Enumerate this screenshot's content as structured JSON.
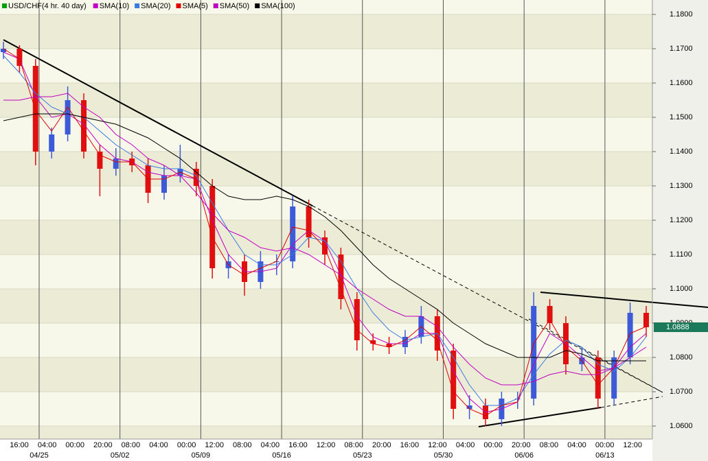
{
  "chart_data": {
    "type": "candlestick",
    "title": "USD/CHF(4 hr.  40 day)",
    "title_color": "#00a000",
    "up_color": "#3d5bd9",
    "down_color": "#e01010",
    "ohlc": [
      [
        1.169,
        1.172,
        1.167,
        1.17
      ],
      [
        1.17,
        1.171,
        1.163,
        1.165
      ],
      [
        1.165,
        1.167,
        1.136,
        1.14
      ],
      [
        1.14,
        1.147,
        1.138,
        1.145
      ],
      [
        1.145,
        1.159,
        1.143,
        1.155
      ],
      [
        1.155,
        1.157,
        1.138,
        1.14
      ],
      [
        1.14,
        1.142,
        1.127,
        1.135
      ],
      [
        1.135,
        1.141,
        1.133,
        1.138
      ],
      [
        1.138,
        1.14,
        1.134,
        1.136
      ],
      [
        1.136,
        1.138,
        1.125,
        1.128
      ],
      [
        1.128,
        1.136,
        1.126,
        1.133
      ],
      [
        1.133,
        1.142,
        1.131,
        1.135
      ],
      [
        1.135,
        1.137,
        1.127,
        1.13
      ],
      [
        1.13,
        1.132,
        1.103,
        1.106
      ],
      [
        1.106,
        1.11,
        1.103,
        1.108
      ],
      [
        1.108,
        1.11,
        1.098,
        1.102
      ],
      [
        1.102,
        1.111,
        1.1,
        1.108
      ],
      [
        1.108,
        1.11,
        1.104,
        1.108
      ],
      [
        1.108,
        1.127,
        1.106,
        1.124
      ],
      [
        1.124,
        1.126,
        1.112,
        1.115
      ],
      [
        1.115,
        1.117,
        1.107,
        1.11
      ],
      [
        1.11,
        1.112,
        1.094,
        1.097
      ],
      [
        1.097,
        1.099,
        1.082,
        1.085
      ],
      [
        1.085,
        1.087,
        1.082,
        1.084
      ],
      [
        1.084,
        1.086,
        1.081,
        1.083
      ],
      [
        1.083,
        1.088,
        1.081,
        1.086
      ],
      [
        1.086,
        1.095,
        1.084,
        1.092
      ],
      [
        1.092,
        1.094,
        1.079,
        1.082
      ],
      [
        1.082,
        1.084,
        1.062,
        1.065
      ],
      [
        1.065,
        1.069,
        1.062,
        1.066
      ],
      [
        1.066,
        1.068,
        1.06,
        1.062
      ],
      [
        1.062,
        1.07,
        1.06,
        1.068
      ],
      [
        1.068,
        1.07,
        1.065,
        1.068
      ],
      [
        1.068,
        1.099,
        1.066,
        1.095
      ],
      [
        1.095,
        1.097,
        1.088,
        1.09
      ],
      [
        1.09,
        1.092,
        1.075,
        1.078
      ],
      [
        1.078,
        1.083,
        1.076,
        1.08
      ],
      [
        1.08,
        1.082,
        1.065,
        1.068
      ],
      [
        1.068,
        1.082,
        1.066,
        1.08
      ],
      [
        1.08,
        1.096,
        1.078,
        1.093
      ],
      [
        1.093,
        1.095,
        1.086,
        1.0888
      ]
    ],
    "series": [
      {
        "name": "SMA(10)",
        "color": "#c000c0",
        "values": [
          1.169,
          1.167,
          1.156,
          1.15,
          1.151,
          1.148,
          1.142,
          1.138,
          1.137,
          1.134,
          1.133,
          1.133,
          1.132,
          1.12,
          1.11,
          1.105,
          1.105,
          1.106,
          1.113,
          1.117,
          1.114,
          1.104,
          1.092,
          1.086,
          1.084,
          1.084,
          1.087,
          1.087,
          1.076,
          1.068,
          1.064,
          1.065,
          1.067,
          1.078,
          1.087,
          1.084,
          1.08,
          1.076,
          1.077,
          1.083,
          1.087
        ]
      },
      {
        "name": "SMA(20)",
        "color": "#3a7be0",
        "values": [
          1.168,
          1.163,
          1.157,
          1.153,
          1.151,
          1.15,
          1.146,
          1.142,
          1.139,
          1.136,
          1.135,
          1.135,
          1.133,
          1.125,
          1.117,
          1.11,
          1.107,
          1.107,
          1.11,
          1.115,
          1.114,
          1.108,
          1.1,
          1.093,
          1.088,
          1.085,
          1.086,
          1.087,
          1.08,
          1.072,
          1.066,
          1.066,
          1.068,
          1.075,
          1.081,
          1.085,
          1.083,
          1.078,
          1.076,
          1.08,
          1.086
        ]
      },
      {
        "name": "SMA(5)",
        "color": "#e00000",
        "values": [
          1.17,
          1.167,
          1.152,
          1.146,
          1.153,
          1.146,
          1.139,
          1.137,
          1.137,
          1.132,
          1.132,
          1.134,
          1.132,
          1.115,
          1.107,
          1.104,
          1.106,
          1.108,
          1.118,
          1.117,
          1.112,
          1.1,
          1.088,
          1.084,
          1.083,
          1.085,
          1.089,
          1.085,
          1.07,
          1.065,
          1.063,
          1.066,
          1.067,
          1.084,
          1.091,
          1.083,
          1.079,
          1.072,
          1.077,
          1.087,
          1.089
        ]
      },
      {
        "name": "SMA(50)",
        "color": "#c000c0",
        "values": [
          1.155,
          1.155,
          1.156,
          1.156,
          1.157,
          1.153,
          1.15,
          1.145,
          1.142,
          1.138,
          1.136,
          1.133,
          1.128,
          1.122,
          1.117,
          1.115,
          1.112,
          1.111,
          1.112,
          1.11,
          1.107,
          1.104,
          1.1,
          1.097,
          1.094,
          1.092,
          1.092,
          1.089,
          1.083,
          1.078,
          1.074,
          1.072,
          1.072,
          1.073,
          1.075,
          1.076,
          1.075,
          1.075,
          1.077,
          1.08,
          1.083
        ]
      },
      {
        "name": "SMA(100)",
        "color": "#000000",
        "values": [
          1.149,
          1.15,
          1.151,
          1.151,
          1.151,
          1.15,
          1.149,
          1.148,
          1.146,
          1.144,
          1.141,
          1.138,
          1.134,
          1.13,
          1.127,
          1.126,
          1.126,
          1.127,
          1.126,
          1.124,
          1.121,
          1.117,
          1.112,
          1.107,
          1.103,
          1.1,
          1.097,
          1.094,
          1.09,
          1.087,
          1.084,
          1.082,
          1.08,
          1.08,
          1.08,
          1.082,
          1.081,
          1.079,
          1.079,
          1.079,
          1.079
        ]
      }
    ],
    "ylim": [
      1.0562,
      1.1842
    ],
    "yticks": [
      {
        "value": 1.18,
        "label": "1.1800"
      },
      {
        "value": 1.17,
        "label": "1.1700"
      },
      {
        "value": 1.16,
        "label": "1.1600"
      },
      {
        "value": 1.15,
        "label": "1.1500"
      },
      {
        "value": 1.14,
        "label": "1.1400"
      },
      {
        "value": 1.13,
        "label": "1.1300"
      },
      {
        "value": 1.12,
        "label": "1.1200"
      },
      {
        "value": 1.11,
        "label": "1.1100"
      },
      {
        "value": 1.1,
        "label": "1.1000"
      },
      {
        "value": 1.09,
        "label": "1.0900"
      },
      {
        "value": 1.08,
        "label": "1.0800"
      },
      {
        "value": 1.07,
        "label": "1.0700"
      },
      {
        "value": 1.06,
        "label": "1.0600"
      }
    ],
    "last_price": {
      "value": 1.0888,
      "label": "1.0888",
      "color": "#1a7a5a"
    },
    "x_time_labels": [
      "16:00",
      "04:00",
      "00:00",
      "20:00",
      "08:00",
      "04:00",
      "00:00",
      "12:00",
      "08:00",
      "04:00",
      "16:00",
      "12:00",
      "08:00",
      "20:00",
      "16:00",
      "12:00",
      "04:00",
      "00:00",
      "20:00",
      "08:00",
      "04:00",
      "00:00",
      "12:00"
    ],
    "x_date_labels": [
      "04/25",
      "05/02",
      "05/09",
      "05/16",
      "05/23",
      "05/30",
      "06/06",
      "06/13"
    ]
  }
}
